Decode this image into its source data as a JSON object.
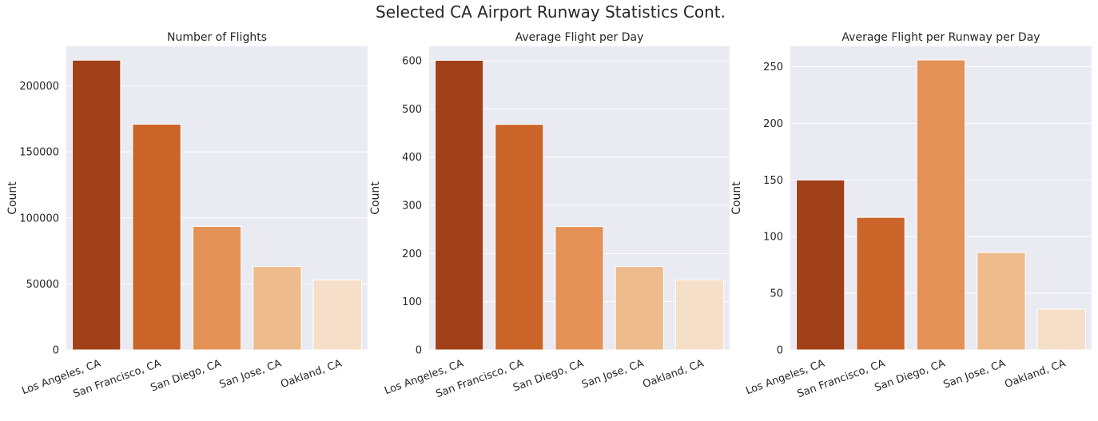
{
  "figure": {
    "suptitle": "Selected CA Airport Runway Statistics Cont."
  },
  "chart_data": [
    {
      "type": "bar",
      "title": "Number of Flights",
      "xlabel": "",
      "ylabel": "Count",
      "categories": [
        "Los Angeles, CA",
        "San Francisco, CA",
        "San Diego, CA",
        "San Jose, CA",
        "Oakland, CA"
      ],
      "values": [
        219500,
        171000,
        93500,
        63200,
        53000
      ],
      "ylim": [
        0,
        230000
      ],
      "yticks": [
        0,
        50000,
        100000,
        150000,
        200000
      ],
      "colors": [
        "#a0411a",
        "#cb6429",
        "#e49156",
        "#edbb8c",
        "#f6dfc8"
      ],
      "grid": true
    },
    {
      "type": "bar",
      "title": "Average Flight per Day",
      "xlabel": "",
      "ylabel": "Count",
      "categories": [
        "Los Angeles, CA",
        "San Francisco, CA",
        "San Diego, CA",
        "San Jose, CA",
        "Oakland, CA"
      ],
      "values": [
        601,
        468,
        256,
        173,
        145
      ],
      "ylim": [
        0,
        630
      ],
      "yticks": [
        0,
        100,
        200,
        300,
        400,
        500,
        600
      ],
      "colors": [
        "#a0411a",
        "#cb6429",
        "#e49156",
        "#edbb8c",
        "#f6dfc8"
      ],
      "grid": true
    },
    {
      "type": "bar",
      "title": "Average Flight per Runway per Day",
      "xlabel": "",
      "ylabel": "Count",
      "categories": [
        "Los Angeles, CA",
        "San Francisco, CA",
        "San Diego, CA",
        "San Jose, CA",
        "Oakland, CA"
      ],
      "values": [
        150,
        117,
        256,
        86,
        36
      ],
      "ylim": [
        0,
        268
      ],
      "yticks": [
        0,
        50,
        100,
        150,
        200,
        250
      ],
      "colors": [
        "#a0411a",
        "#cb6429",
        "#e49156",
        "#edbb8c",
        "#f6dfc8"
      ],
      "grid": true
    }
  ]
}
